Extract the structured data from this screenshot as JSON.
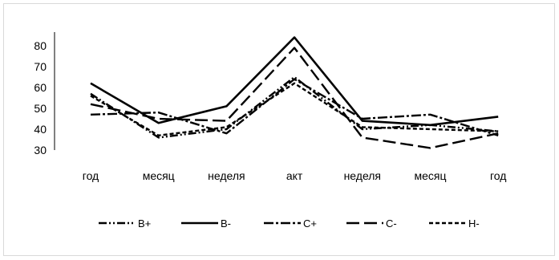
{
  "chart_data": {
    "type": "line",
    "categories": [
      "год",
      "месяц",
      "неделя",
      "акт",
      "неделя",
      "месяц",
      "год"
    ],
    "ylim": [
      30,
      80
    ],
    "yticks": [
      30,
      40,
      50,
      60,
      70,
      80
    ],
    "grid": false,
    "legend_position": "bottom",
    "series": [
      {
        "name": "B+",
        "values": [
          57,
          36,
          40,
          65,
          40,
          42,
          39
        ],
        "color": "#000000",
        "dash": "dash-dot-dot"
      },
      {
        "name": "B-",
        "values": [
          62,
          43,
          51,
          84,
          44,
          42,
          46
        ],
        "color": "#000000",
        "dash": "solid"
      },
      {
        "name": "C+",
        "values": [
          47,
          48,
          38,
          64,
          45,
          47,
          37
        ],
        "color": "#000000",
        "dash": "dash-dot"
      },
      {
        "name": "C-",
        "values": [
          52,
          45,
          44,
          79,
          36,
          31,
          38
        ],
        "color": "#000000",
        "dash": "long-dash"
      },
      {
        "name": "H-",
        "values": [
          56,
          37,
          41,
          62,
          41,
          40,
          39
        ],
        "color": "#000000",
        "dash": "short-dash"
      }
    ]
  }
}
